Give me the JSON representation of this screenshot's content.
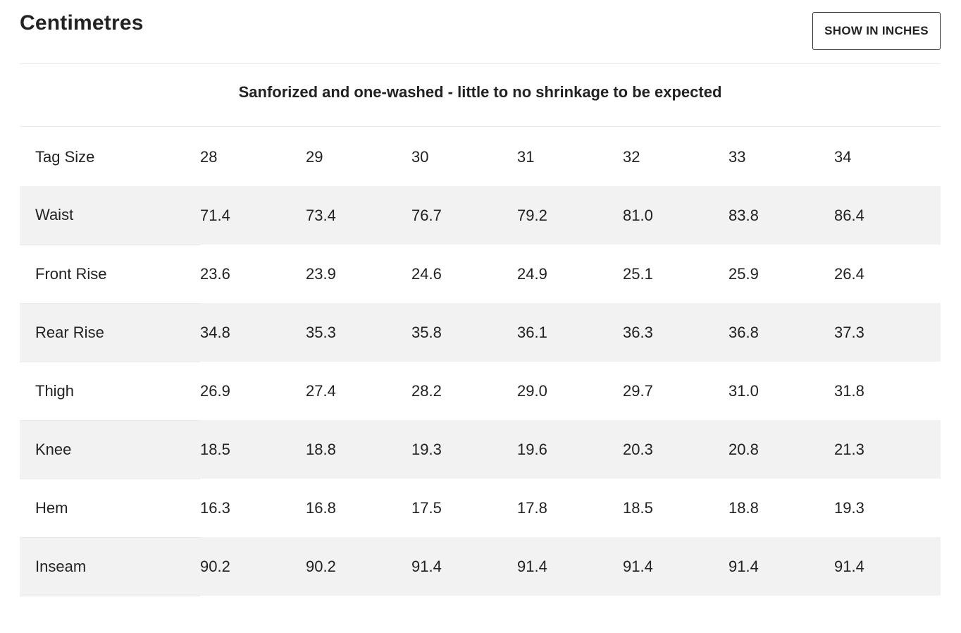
{
  "header": {
    "unit_title": "Centimetres",
    "toggle_label": "SHOW IN INCHES"
  },
  "note": "Sanforized and one-washed - little to no shrinkage to be expected",
  "table": {
    "header_label": "Tag Size",
    "sizes": [
      "28",
      "29",
      "30",
      "31",
      "32",
      "33",
      "34"
    ],
    "rows": [
      {
        "label": "Waist",
        "values": [
          "71.4",
          "73.4",
          "76.7",
          "79.2",
          "81.0",
          "83.8",
          "86.4"
        ]
      },
      {
        "label": "Front Rise",
        "values": [
          "23.6",
          "23.9",
          "24.6",
          "24.9",
          "25.1",
          "25.9",
          "26.4"
        ]
      },
      {
        "label": "Rear Rise",
        "values": [
          "34.8",
          "35.3",
          "35.8",
          "36.1",
          "36.3",
          "36.8",
          "37.3"
        ]
      },
      {
        "label": "Thigh",
        "values": [
          "26.9",
          "27.4",
          "28.2",
          "29.0",
          "29.7",
          "31.0",
          "31.8"
        ]
      },
      {
        "label": "Knee",
        "values": [
          "18.5",
          "18.8",
          "19.3",
          "19.6",
          "20.3",
          "20.8",
          "21.3"
        ]
      },
      {
        "label": "Hem",
        "values": [
          "16.3",
          "16.8",
          "17.5",
          "17.8",
          "18.5",
          "18.8",
          "19.3"
        ]
      },
      {
        "label": "Inseam",
        "values": [
          "90.2",
          "90.2",
          "91.4",
          "91.4",
          "91.4",
          "91.4",
          "91.4"
        ]
      }
    ]
  },
  "colors": {
    "text": "#222222",
    "row_shade": "#f2f2f2",
    "divider": "#e9e9e9",
    "button_border": "#333333"
  }
}
